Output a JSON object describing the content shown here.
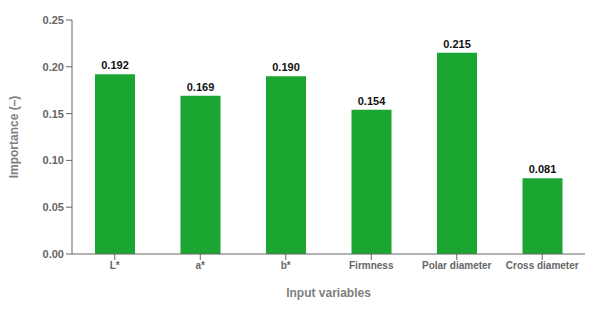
{
  "chart_data": {
    "type": "bar",
    "xlabel": "Input variables",
    "ylabel": "Importance (–)",
    "categories": [
      "L*",
      "a*",
      "b*",
      "Firmness",
      "Polar diameter",
      "Cross diameter"
    ],
    "values": [
      0.192,
      0.169,
      0.19,
      0.154,
      0.215,
      0.081
    ],
    "value_labels": [
      "0.192",
      "0.169",
      "0.190",
      "0.154",
      "0.215",
      "0.081"
    ],
    "data_labels": true,
    "color": "#1aA631",
    "ylim": [
      0.0,
      0.25
    ],
    "yticks": [
      {
        "value": 0.0,
        "label": "0.00"
      },
      {
        "value": 0.05,
        "label": "0.05"
      },
      {
        "value": 0.1,
        "label": "0.10"
      },
      {
        "value": 0.15,
        "label": "0.15"
      },
      {
        "value": 0.2,
        "label": "0.20"
      },
      {
        "value": 0.25,
        "label": "0.25"
      }
    ],
    "grid": false
  }
}
